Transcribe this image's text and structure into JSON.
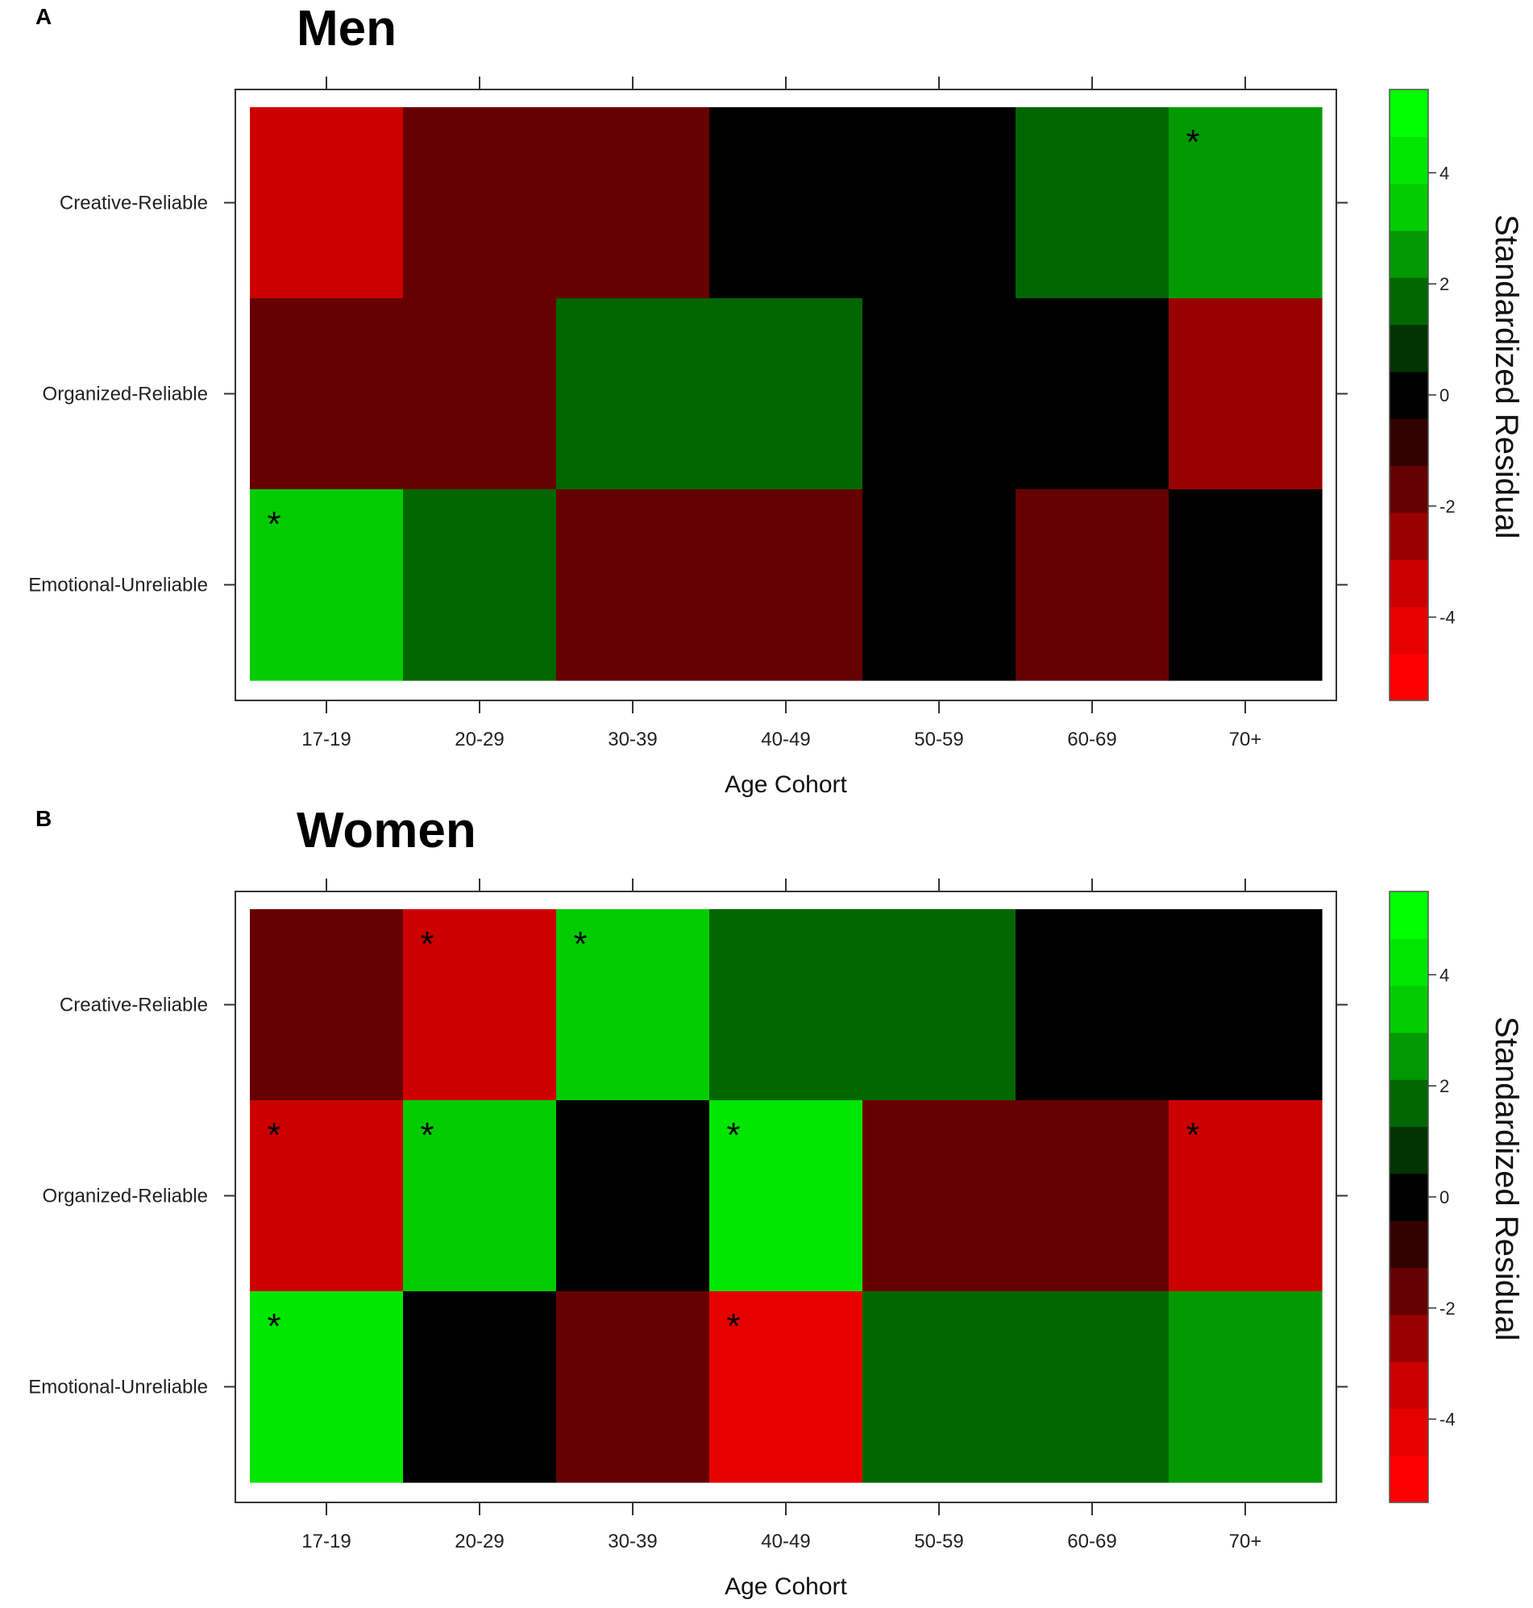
{
  "colors": {
    "scale": [
      "#FF0000",
      "#E60000",
      "#CC0000",
      "#990000",
      "#660000",
      "#330000",
      "#000000",
      "#003300",
      "#006600",
      "#009900",
      "#00CC00",
      "#00E600",
      "#00FF00"
    ]
  },
  "colorbar": {
    "title": "Standardized Residual",
    "breaks": [
      -5.5,
      5.5
    ],
    "ticks": [
      "-4",
      "-2",
      "0",
      "2",
      "4"
    ]
  },
  "chart_data": [
    {
      "type": "heatmap",
      "panel": "A",
      "title": "Men",
      "xlabel": "Age Cohort",
      "ylabel": "",
      "x_categories": [
        "17-19",
        "20-29",
        "30-39",
        "40-49",
        "50-59",
        "60-69",
        "70+"
      ],
      "y_categories": [
        "Creative-Reliable",
        "Organized-Reliable",
        "Emotional-Unreliable"
      ],
      "values": [
        [
          -3.0,
          -1.5,
          -1.5,
          0.0,
          0.0,
          1.5,
          2.5
        ],
        [
          -1.5,
          -1.5,
          1.5,
          1.5,
          0.0,
          0.0,
          -2.5
        ],
        [
          3.0,
          1.5,
          -1.5,
          -1.5,
          0.0,
          -1.5,
          0.0
        ]
      ],
      "significant": [
        [
          false,
          false,
          false,
          false,
          false,
          false,
          true
        ],
        [
          false,
          false,
          false,
          false,
          false,
          false,
          false
        ],
        [
          true,
          false,
          false,
          false,
          false,
          false,
          false
        ]
      ],
      "significance_marker": "*",
      "color_range": [
        -5.5,
        5.5
      ]
    },
    {
      "type": "heatmap",
      "panel": "B",
      "title": "Women",
      "xlabel": "Age Cohort",
      "ylabel": "",
      "x_categories": [
        "17-19",
        "20-29",
        "30-39",
        "40-49",
        "50-59",
        "60-69",
        "70+"
      ],
      "y_categories": [
        "Creative-Reliable",
        "Organized-Reliable",
        "Emotional-Unreliable"
      ],
      "values": [
        [
          -2.0,
          -3.0,
          3.0,
          1.5,
          1.5,
          0.0,
          0.0
        ],
        [
          -3.0,
          3.0,
          0.0,
          4.0,
          -1.5,
          -1.5,
          -3.0
        ],
        [
          4.0,
          0.0,
          -2.0,
          -4.0,
          1.5,
          1.5,
          2.5
        ]
      ],
      "significant": [
        [
          false,
          true,
          true,
          false,
          false,
          false,
          false
        ],
        [
          true,
          true,
          false,
          true,
          false,
          false,
          true
        ],
        [
          true,
          false,
          false,
          true,
          false,
          false,
          false
        ]
      ],
      "significance_marker": "*",
      "color_range": [
        -5.5,
        5.5
      ]
    }
  ]
}
